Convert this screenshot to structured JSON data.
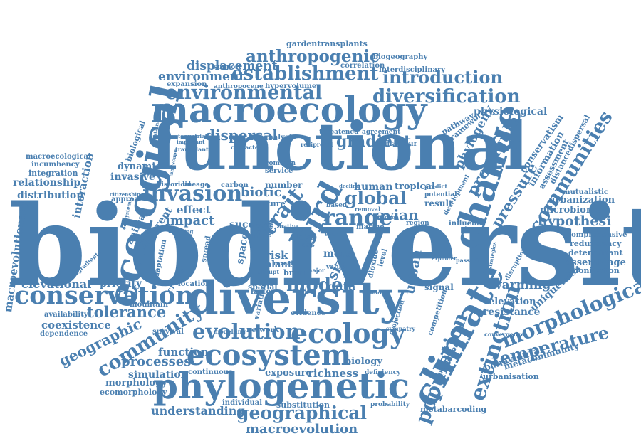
{
  "colors": {
    "word": "#4a7fb0",
    "background": "#ffffff"
  },
  "words": [
    "biodiversity",
    "functional",
    "macroecology",
    "ecological",
    "diversity",
    "change",
    "phylogenetic",
    "climate",
    "conservation",
    "ecosystem",
    "ecology",
    "morphological",
    "communities",
    "invasion",
    "establishment",
    "environmental",
    "anthropogenic",
    "diversification",
    "introduction",
    "range",
    "global",
    "bird",
    "trait",
    "model",
    "population",
    "extinction",
    "temperature",
    "evolution",
    "geographical",
    "community",
    "geographic",
    "dispersal",
    "gradient",
    "propagule",
    "pressure",
    "displacement",
    "environment",
    "hypothesi",
    "macroevolution",
    "biotic",
    "impact",
    "effect",
    "tolerance",
    "processes",
    "function",
    "understanding",
    "elevational",
    "warming",
    "urban",
    "physiological",
    "macroevolutionary",
    "interaction",
    "relationship",
    "distribution",
    "coexistence",
    "priority",
    "invasive",
    "dynamic",
    "biological",
    "phylogeny",
    "size",
    "human",
    "tropical",
    "avian",
    "success",
    "richness",
    "biology",
    "exposure",
    "simulation",
    "morphology",
    "ecomorphology",
    "metacommunity",
    "behavioural",
    "urbanisation",
    "resistance",
    "elevation",
    "uniqueness",
    "assemblage",
    "colonization",
    "microbiome",
    "urbanization",
    "mutualistic",
    "redundancy",
    "determinant",
    "comprehensive",
    "conservatism",
    "information",
    "assessment",
    "distancedispersal",
    "gardentransplants",
    "biogeography",
    "correlation",
    "interdisciplinary",
    "expansion",
    "hypervolume",
    "anthropocene",
    "support",
    "framework",
    "pathway",
    "spatial",
    "factor",
    "data",
    "risk",
    "plant",
    "more",
    "time",
    "space",
    "local",
    "loss",
    "brain",
    "number",
    "carbon",
    "service",
    "analysis",
    "common",
    "integration",
    "incumbency",
    "macroecological",
    "availability",
    "dependence",
    "mountain",
    "location",
    "adaptation",
    "cranial",
    "animal",
    "different",
    "historical",
    "lineage",
    "approach",
    "result",
    "signal",
    "competition",
    "speciation",
    "deficiency",
    "probability",
    "metabarcoding",
    "substitution",
    "individual",
    "continuous",
    "network",
    "modelling",
    "survival",
    "evidence",
    "variation",
    "spread",
    "reveal",
    "future",
    "based",
    "removal",
    "marine",
    "region",
    "influence",
    "development",
    "potential",
    "predict",
    "disruption",
    "convergence",
    "agreement",
    "threatened",
    "behaviour",
    "reciprocal",
    "character",
    "transplant",
    "important",
    "terrestrial",
    "sustainable",
    "landscape",
    "native",
    "major",
    "value",
    "sympatry",
    "projection",
    "dioxide",
    "level",
    "event",
    "passerine",
    "strategies",
    "resource",
    "founding",
    "history",
    "citizenship",
    "ecosystemic",
    "singradients",
    "decline",
    "horizon",
    "exploiter",
    "origin",
    "abrupt",
    "scale",
    "global2"
  ]
}
